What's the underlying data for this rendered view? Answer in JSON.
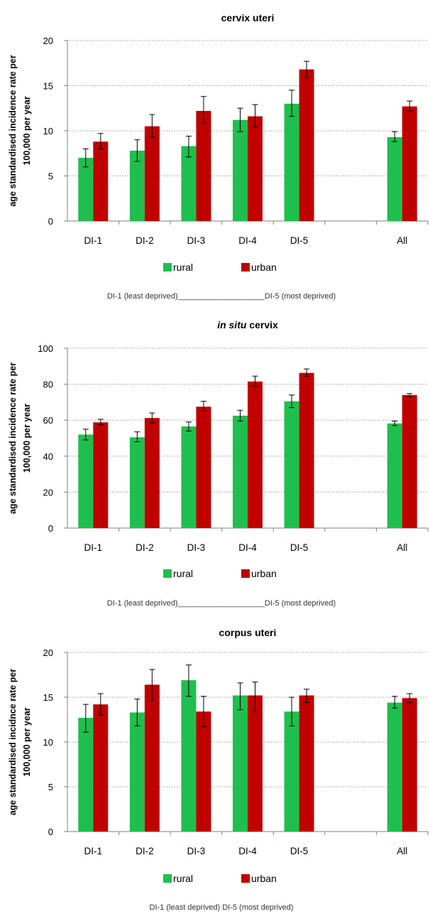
{
  "colors": {
    "rural": "#1fbf4f",
    "urban": "#c00000",
    "grid": "#9a9a9a",
    "axis": "#7f7f7f"
  },
  "legend": {
    "rural": "rural",
    "urban": "urban"
  },
  "chart_data": [
    {
      "type": "bar",
      "title_italic": "",
      "title": "cervix uteri",
      "ylabel_line1": "age standardised incidence  rate per",
      "ylabel_line2": "100,000 per year",
      "xlabel": "",
      "footnote": "DI-1 (least deprived)____________________DI-5 (most deprived)",
      "ylim": [
        0,
        20
      ],
      "yticks": [
        0,
        5,
        10,
        15,
        20
      ],
      "grid": true,
      "legend_position": "bottom",
      "categories": [
        "DI-1",
        "DI-2",
        "DI-3",
        "DI-4",
        "DI-5",
        "",
        "All"
      ],
      "series": [
        {
          "name": "rural",
          "values": [
            7.0,
            7.8,
            8.3,
            11.2,
            13.0,
            null,
            9.3
          ],
          "err_low": [
            6.0,
            6.6,
            7.1,
            9.9,
            11.6,
            null,
            8.8
          ],
          "err_high": [
            8.0,
            9.0,
            9.4,
            12.5,
            14.5,
            null,
            9.9
          ]
        },
        {
          "name": "urban",
          "values": [
            8.8,
            10.5,
            12.2,
            11.6,
            16.8,
            null,
            12.7
          ],
          "err_low": [
            8.0,
            9.3,
            10.8,
            10.4,
            15.9,
            null,
            12.2
          ],
          "err_high": [
            9.7,
            11.8,
            13.8,
            12.9,
            17.7,
            null,
            13.3
          ]
        }
      ]
    },
    {
      "type": "bar",
      "title_italic": "in situ",
      "title": " cervix",
      "ylabel_line1": "age standardised incidence  rate per",
      "ylabel_line2": "100,000 per year",
      "xlabel": "",
      "footnote": "DI-1 (least deprived)____________________DI-5 (most deprived)",
      "ylim": [
        0,
        100
      ],
      "yticks": [
        0,
        20,
        40,
        60,
        80,
        100
      ],
      "grid": true,
      "legend_position": "bottom",
      "categories": [
        "DI-1",
        "DI-2",
        "DI-3",
        "DI-4",
        "DI-5",
        "",
        "All"
      ],
      "series": [
        {
          "name": "rural",
          "values": [
            52.0,
            50.5,
            56.5,
            62.5,
            70.5,
            null,
            58.2
          ],
          "err_low": [
            49.0,
            48.0,
            54.0,
            59.5,
            67.0,
            null,
            57.0
          ],
          "err_high": [
            55.0,
            53.5,
            59.0,
            65.5,
            74.0,
            null,
            59.5
          ]
        },
        {
          "name": "urban",
          "values": [
            58.8,
            61.2,
            67.5,
            81.5,
            86.3,
            null,
            74.0
          ],
          "err_low": [
            57.5,
            58.5,
            65.0,
            79.0,
            84.5,
            null,
            73.0
          ],
          "err_high": [
            60.5,
            64.0,
            70.5,
            84.5,
            88.5,
            null,
            74.8
          ]
        }
      ]
    },
    {
      "type": "bar",
      "title_italic": "",
      "title": "corpus uteri",
      "ylabel_line1": "age standardised incidnce  rate per",
      "ylabel_line2": "100,000 per year",
      "xlabel": "",
      "footnote": "DI-1 (least deprived)                                          DI-5 (most deprived)",
      "ylim": [
        0,
        20
      ],
      "yticks": [
        0,
        5,
        10,
        15,
        20
      ],
      "grid": true,
      "legend_position": "bottom",
      "categories": [
        "DI-1",
        "DI-2",
        "DI-3",
        "DI-4",
        "DI-5",
        "",
        "All"
      ],
      "series": [
        {
          "name": "rural",
          "values": [
            12.7,
            13.3,
            16.9,
            15.2,
            13.4,
            null,
            14.4
          ],
          "err_low": [
            11.1,
            11.8,
            15.1,
            13.6,
            11.8,
            null,
            13.8
          ],
          "err_high": [
            14.2,
            14.8,
            18.6,
            16.6,
            15.0,
            null,
            15.1
          ]
        },
        {
          "name": "urban",
          "values": [
            14.2,
            16.4,
            13.4,
            15.2,
            15.2,
            null,
            14.9
          ],
          "err_low": [
            13.0,
            14.7,
            11.7,
            13.4,
            14.4,
            null,
            14.4
          ],
          "err_high": [
            15.4,
            18.1,
            15.1,
            16.7,
            15.9,
            null,
            15.4
          ]
        }
      ]
    }
  ]
}
